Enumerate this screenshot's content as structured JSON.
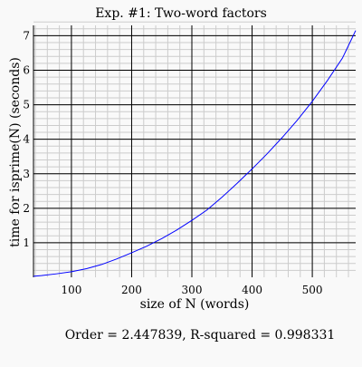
{
  "chart_data": {
    "type": "line",
    "title": "Exp. #1: Two-word factors",
    "xlabel": "size of N (words)",
    "ylabel": "time for isprime(N) (seconds)",
    "footer": "Order = 2.447839, R-squared = 0.998331",
    "xlim": [
      37,
      572
    ],
    "ylim": [
      0,
      7.3
    ],
    "x_ticks": [
      100,
      200,
      300,
      400,
      500
    ],
    "y_ticks": [
      1,
      2,
      3,
      4,
      5,
      6,
      7
    ],
    "x_minor_step": 20,
    "y_minor_step": 0.2,
    "grid": true,
    "colors": {
      "series": "#0000ff",
      "grid_major": "#000000",
      "grid_minor": "#cccccc",
      "background": "#f9f9f9"
    },
    "series": [
      {
        "x": [
          37,
          50,
          75,
          100,
          125,
          150,
          175,
          200,
          225,
          250,
          275,
          300,
          325,
          350,
          375,
          400,
          425,
          450,
          475,
          500,
          525,
          550,
          572
        ],
        "y": [
          0.03,
          0.05,
          0.1,
          0.16,
          0.25,
          0.37,
          0.53,
          0.71,
          0.9,
          1.12,
          1.37,
          1.65,
          1.95,
          2.32,
          2.72,
          3.14,
          3.58,
          4.05,
          4.55,
          5.1,
          5.7,
          6.35,
          7.15
        ]
      }
    ]
  }
}
